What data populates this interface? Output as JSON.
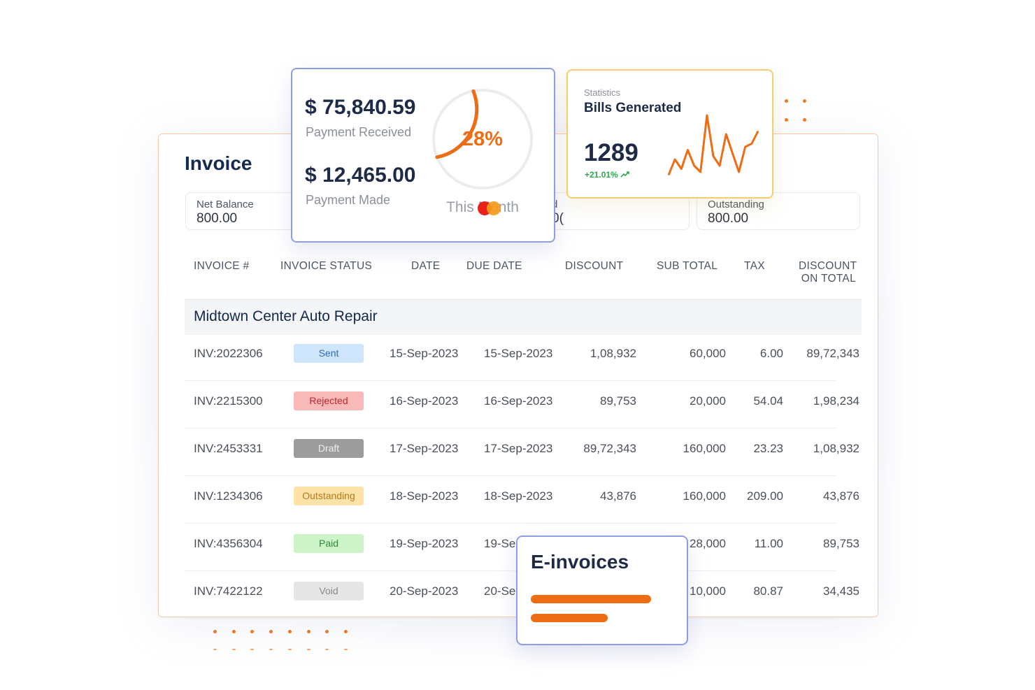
{
  "invoice": {
    "title": "Invoice",
    "summary": [
      {
        "label": "Net Balance",
        "value": "800.00"
      },
      {
        "label": "d",
        "value": "0(",
        "partial": true
      },
      {
        "label": "Outstanding",
        "value": "800.00"
      }
    ],
    "columns": [
      "INVOICE #",
      "INVOICE STATUS",
      "DATE",
      "DUE DATE",
      "DISCOUNT",
      "SUB TOTAL",
      "TAX",
      "DISCOUNT",
      "ON TOTAL"
    ],
    "group": "Midtown Center Auto Repair",
    "rows": [
      {
        "id": "INV:2022306",
        "status": "Sent",
        "date": "15-Sep-2023",
        "due": "15-Sep-2023",
        "discount": "1,08,932",
        "subtotal": "60,000",
        "tax": "6.00",
        "total": "89,72,343"
      },
      {
        "id": "INV:2215300",
        "status": "Rejected",
        "date": "16-Sep-2023",
        "due": "16-Sep-2023",
        "discount": "89,753",
        "subtotal": "20,000",
        "tax": "54.04",
        "total": "1,98,234"
      },
      {
        "id": "INV:2453331",
        "status": "Draft",
        "date": "17-Sep-2023",
        "due": "17-Sep-2023",
        "discount": "89,72,343",
        "subtotal": "160,000",
        "tax": "23.23",
        "total": "1,08,932"
      },
      {
        "id": "INV:1234306",
        "status": "Outstanding",
        "date": "18-Sep-2023",
        "due": "18-Sep-2023",
        "discount": "43,876",
        "subtotal": "160,000",
        "tax": "209.00",
        "total": "43,876"
      },
      {
        "id": "INV:4356304",
        "status": "Paid",
        "date": "19-Sep-2023",
        "due": "19-Se",
        "discount": "",
        "subtotal": "28,000",
        "tax": "11.00",
        "total": "89,753"
      },
      {
        "id": "INV:7422122",
        "status": "Void",
        "date": "20-Sep-2023",
        "due": "20-Se",
        "discount": "",
        "subtotal": "10,000",
        "tax": "80.87",
        "total": "34,435"
      }
    ],
    "status_colors": {
      "Sent": {
        "bg": "#cfe5fb",
        "fg": "#2f6bb0"
      },
      "Rejected": {
        "bg": "#f8b9b9",
        "fg": "#c0262d"
      },
      "Draft": {
        "bg": "#9c9c9c",
        "fg": "#eeeeee"
      },
      "Outstanding": {
        "bg": "#fde3a7",
        "fg": "#b9781b"
      },
      "Paid": {
        "bg": "#cdf3c8",
        "fg": "#2e8a34"
      },
      "Void": {
        "bg": "#e6e6e6",
        "fg": "#8a8a8a"
      }
    }
  },
  "payments": {
    "received_amount": "$ 75,840.59",
    "received_label": "Payment Received",
    "made_amount": "$ 12,465.00",
    "made_label": "Payment Made",
    "percent": "28%",
    "percent_value": 28,
    "period": "This Month",
    "ring_color": "#ee6c13"
  },
  "statistics": {
    "kicker": "Statistics",
    "title": "Bills Generated",
    "value": "1289",
    "change": "+21.01%",
    "sparkline_color": "#ee6c13",
    "sparkline": [
      2,
      12,
      6,
      18,
      8,
      4,
      40,
      14,
      8,
      28,
      16,
      4,
      20,
      22,
      30
    ]
  },
  "einvoices": {
    "title": "E-invoices",
    "bar_color": "#ee6c13"
  }
}
